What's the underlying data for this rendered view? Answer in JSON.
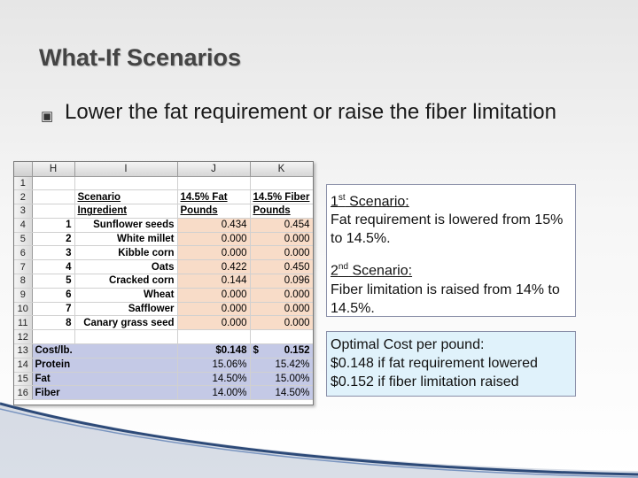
{
  "title": "What-If Scenarios",
  "bullet": {
    "glyph": "▣",
    "text": "Lower the fat requirement or raise the fiber limitation"
  },
  "sheet": {
    "columns": [
      "H",
      "I",
      "J",
      "K"
    ],
    "rows": [
      {
        "num": "1",
        "h": "",
        "i": "",
        "j": "",
        "k": ""
      },
      {
        "num": "2",
        "h": "",
        "i": "Scenario",
        "j": "14.5% Fat",
        "k": "14.5% Fiber"
      },
      {
        "num": "3",
        "h": "",
        "i": "Ingredient",
        "j": "Pounds",
        "k": "Pounds"
      },
      {
        "num": "4",
        "h": "1",
        "i": "Sunflower seeds",
        "j": "0.434",
        "k": "0.454"
      },
      {
        "num": "5",
        "h": "2",
        "i": "White millet",
        "j": "0.000",
        "k": "0.000"
      },
      {
        "num": "6",
        "h": "3",
        "i": "Kibble corn",
        "j": "0.000",
        "k": "0.000"
      },
      {
        "num": "7",
        "h": "4",
        "i": "Oats",
        "j": "0.422",
        "k": "0.450"
      },
      {
        "num": "8",
        "h": "5",
        "i": "Cracked corn",
        "j": "0.144",
        "k": "0.096"
      },
      {
        "num": "9",
        "h": "6",
        "i": "Wheat",
        "j": "0.000",
        "k": "0.000"
      },
      {
        "num": "10",
        "h": "7",
        "i": "Safflower",
        "j": "0.000",
        "k": "0.000"
      },
      {
        "num": "11",
        "h": "8",
        "i": "Canary grass seed",
        "j": "0.000",
        "k": "0.000"
      },
      {
        "num": "12",
        "h": "",
        "i": "",
        "j": "",
        "k": ""
      },
      {
        "num": "13",
        "h": "Cost/lb.",
        "i": "",
        "j": "$0.148",
        "k_left": "$",
        "k_right": "0.152"
      },
      {
        "num": "14",
        "h": "Protein",
        "i": "",
        "j": "15.06%",
        "k": "15.42%"
      },
      {
        "num": "15",
        "h": "Fat",
        "i": "",
        "j": "14.50%",
        "k": "15.00%"
      },
      {
        "num": "16",
        "h": "Fiber",
        "i": "",
        "j": "14.00%",
        "k": "14.50%"
      }
    ]
  },
  "notes": {
    "s1_num": "1",
    "s1_sup": "st",
    "s1_word": " Scenario:",
    "s1_text": "Fat requirement is lowered from 15% to 14.5%.",
    "s2_num": "2",
    "s2_sup": "nd",
    "s2_word": " Scenario:",
    "s2_text": "Fiber limitation is raised from 14% to 14.5%.",
    "cost_lines": [
      "Optimal Cost per pound:",
      "$0.148 if fat requirement lowered",
      "$0.152 if fiber limitation raised"
    ]
  },
  "colors": {
    "ingredient_fill": "#f8dcc8",
    "summary_fill": "#c4c9e6",
    "cost_box_fill": "#e0f2fb",
    "swoosh": "#2d4a78"
  }
}
